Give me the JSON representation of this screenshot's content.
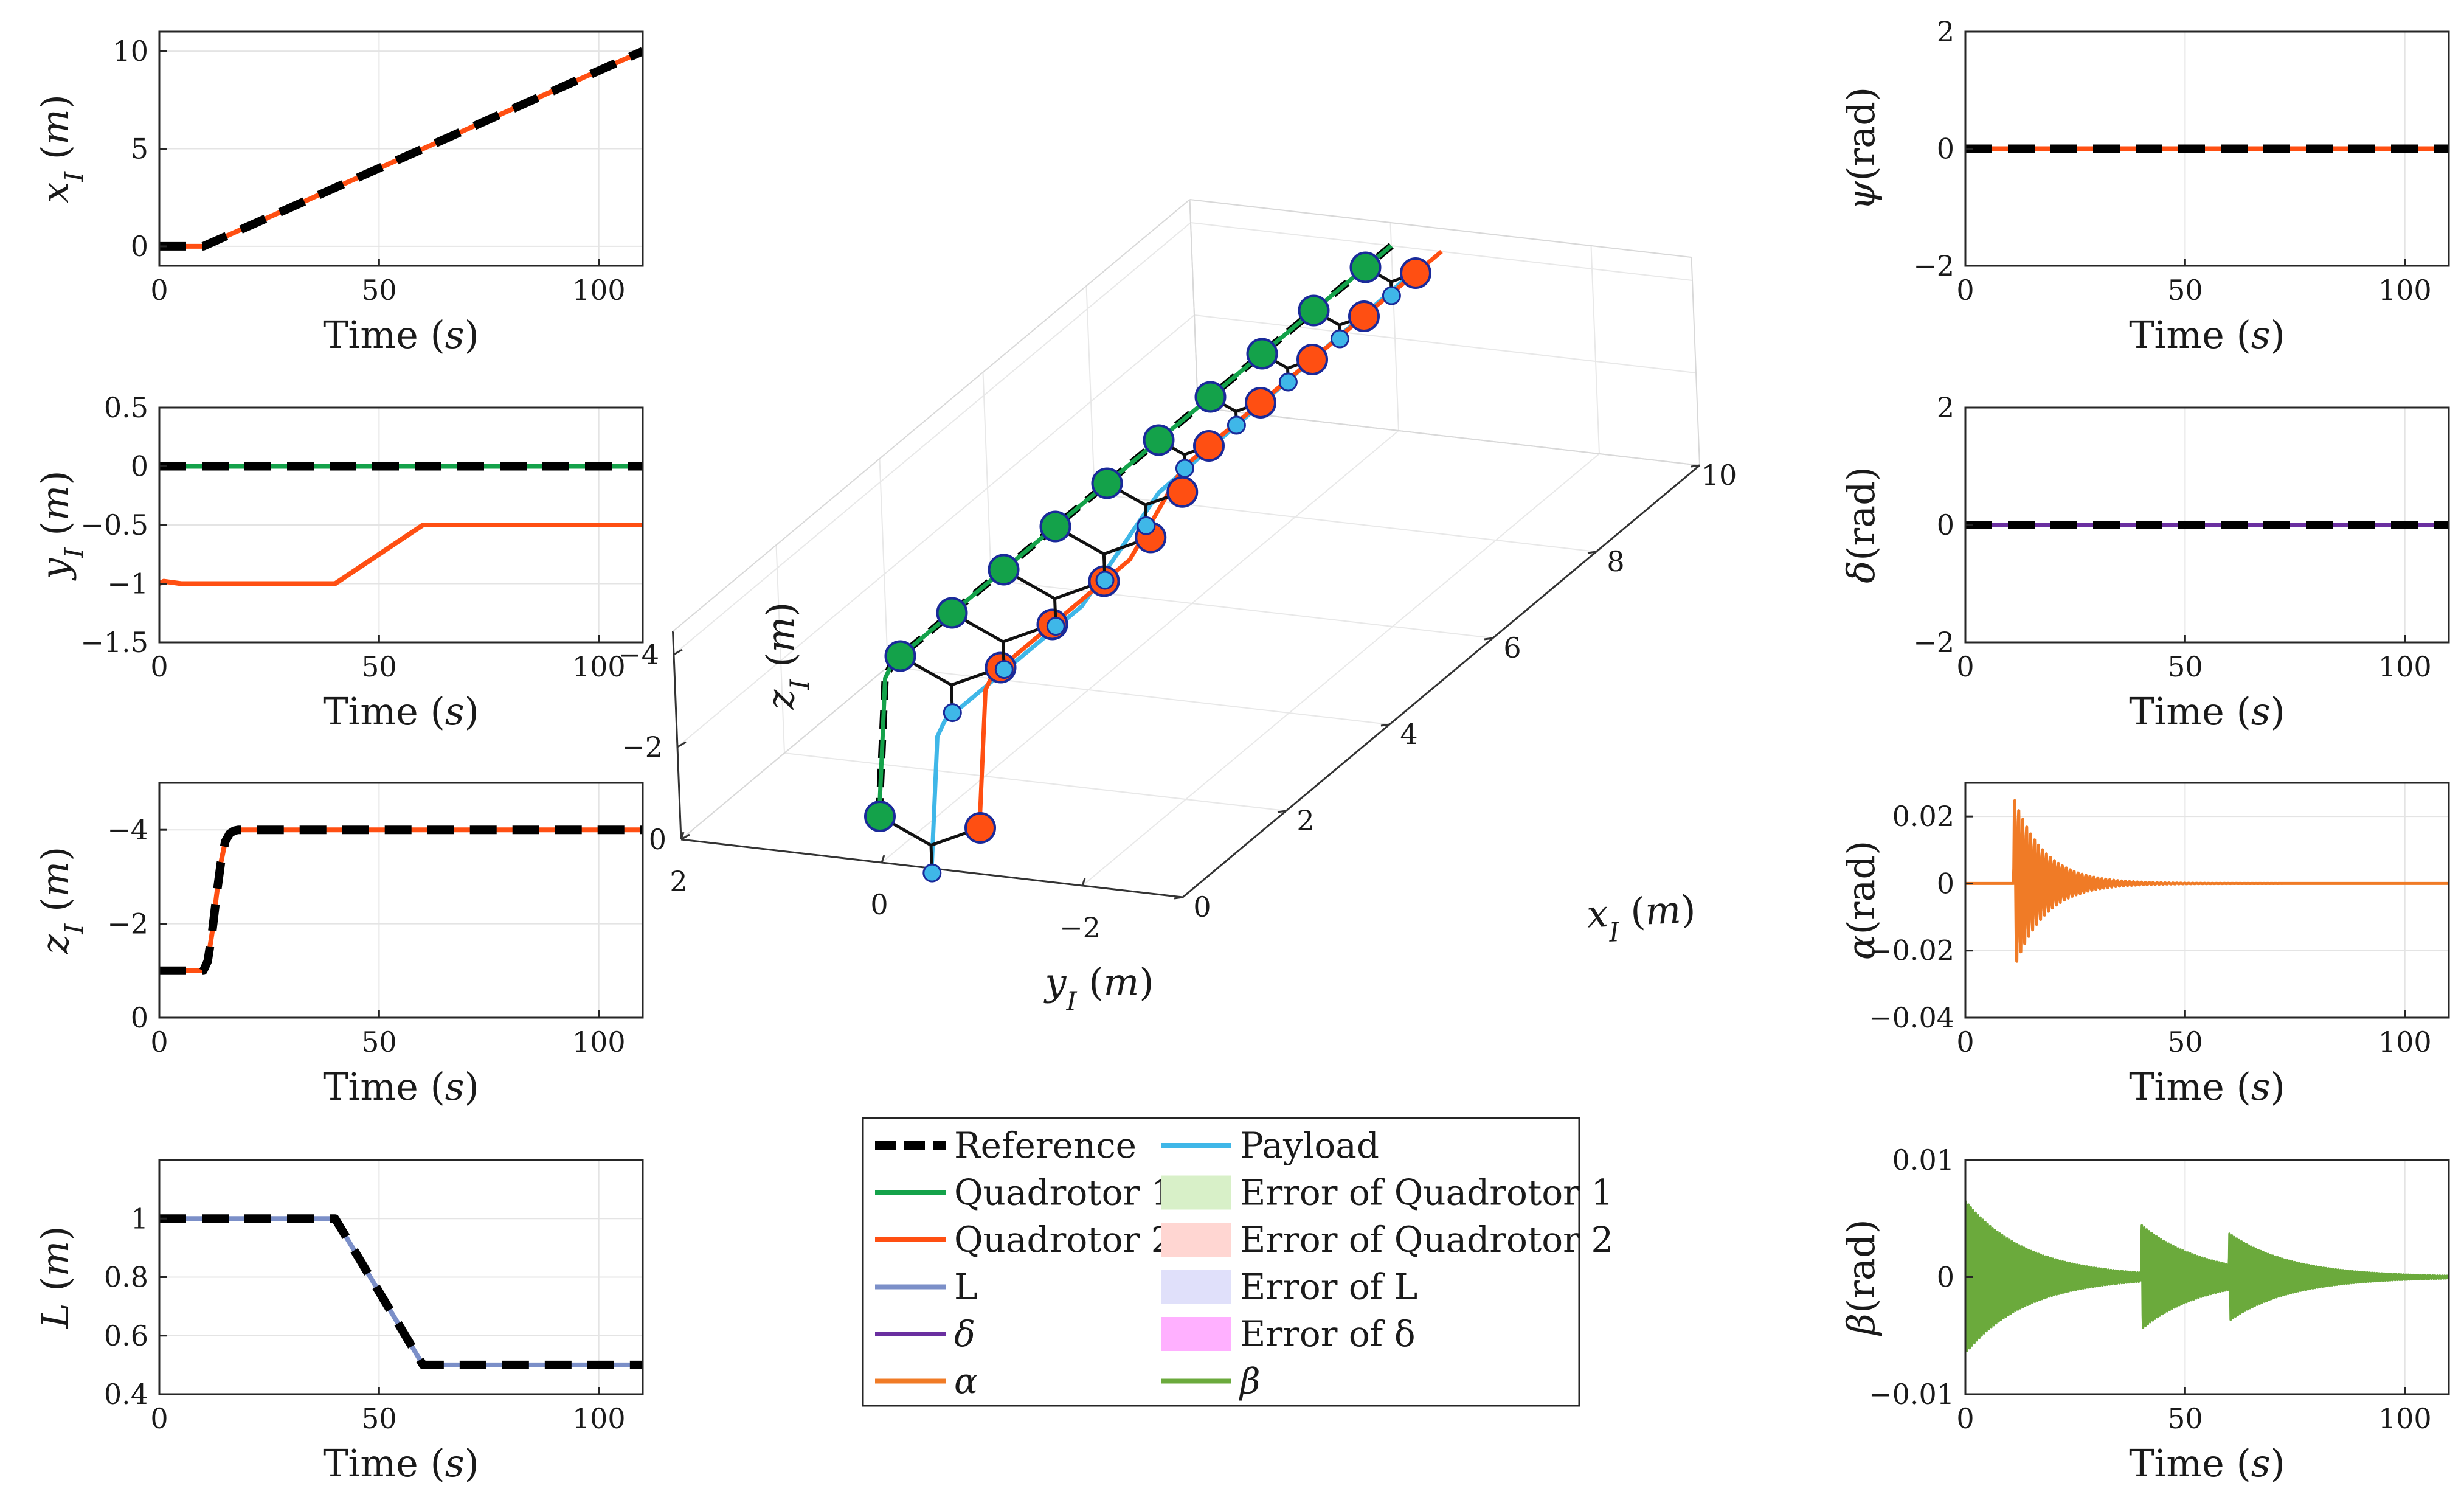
{
  "chart_data": [
    {
      "id": "xI",
      "type": "line",
      "xlabel": "Time (s)",
      "ylabel": "x_I (m)",
      "xlim": [
        0,
        110
      ],
      "ylim": [
        -1,
        11
      ],
      "xticks": [
        0,
        50,
        100
      ],
      "yticks": [
        0,
        5,
        10
      ],
      "series": [
        {
          "name": "Quadrotor 2",
          "color": "#FF4F12",
          "width": 8,
          "x": [
            0,
            10,
            12,
            110
          ],
          "y": [
            0,
            0,
            0.2,
            10
          ]
        },
        {
          "name": "Reference",
          "color": "#000000",
          "width": 14,
          "dash": "44 26",
          "x": [
            0,
            10,
            12,
            110
          ],
          "y": [
            0,
            0,
            0.2,
            10
          ]
        }
      ]
    },
    {
      "id": "yI",
      "type": "line",
      "xlabel": "Time (s)",
      "ylabel": "y_I (m)",
      "xlim": [
        0,
        110
      ],
      "ylim": [
        -1.5,
        0.5
      ],
      "xticks": [
        0,
        50,
        100
      ],
      "yticks": [
        -1.5,
        -1,
        -0.5,
        0,
        0.5
      ],
      "series": [
        {
          "name": "Quadrotor 1",
          "color": "#14A24A",
          "width": 8,
          "x": [
            0,
            110
          ],
          "y": [
            0,
            0
          ]
        },
        {
          "name": "Quadrotor 2",
          "color": "#FF4F12",
          "width": 8,
          "x": [
            0,
            1,
            5,
            40,
            60,
            110
          ],
          "y": [
            -1,
            -0.98,
            -1,
            -1,
            -0.5,
            -0.5
          ]
        },
        {
          "name": "Reference",
          "color": "#000000",
          "width": 14,
          "dash": "44 26",
          "x": [
            0,
            110
          ],
          "y": [
            0,
            0
          ]
        }
      ]
    },
    {
      "id": "zI",
      "type": "line",
      "xlabel": "Time (s)",
      "ylabel": "z_I (m)",
      "xlim": [
        0,
        110
      ],
      "ylim": [
        0,
        -5
      ],
      "reversed_y": true,
      "xticks": [
        0,
        50,
        100
      ],
      "yticks": [
        0,
        -2,
        -4
      ],
      "series": [
        {
          "name": "Quadrotor 2",
          "color": "#FF4F12",
          "width": 8,
          "x": [
            0,
            10,
            11,
            12,
            13,
            14,
            15,
            16,
            17,
            18,
            110
          ],
          "y": [
            -1,
            -1,
            -1.2,
            -1.8,
            -2.6,
            -3.3,
            -3.75,
            -3.92,
            -3.98,
            -4,
            -4
          ]
        },
        {
          "name": "Reference",
          "color": "#000000",
          "width": 14,
          "dash": "44 26",
          "x": [
            0,
            10,
            11,
            12,
            13,
            14,
            15,
            16,
            17,
            18,
            110
          ],
          "y": [
            -1,
            -1,
            -1.2,
            -1.8,
            -2.6,
            -3.3,
            -3.75,
            -3.92,
            -3.98,
            -4,
            -4
          ]
        }
      ]
    },
    {
      "id": "L",
      "type": "line",
      "xlabel": "Time (s)",
      "ylabel": "L (m)",
      "xlim": [
        0,
        110
      ],
      "ylim": [
        0.4,
        1.2
      ],
      "xticks": [
        0,
        50,
        100
      ],
      "yticks": [
        0.4,
        0.6,
        0.8,
        1
      ],
      "series": [
        {
          "name": "L",
          "color": "#7B8FC8",
          "width": 8,
          "x": [
            0,
            40,
            60,
            110
          ],
          "y": [
            1,
            1,
            0.5,
            0.5
          ]
        },
        {
          "name": "Reference",
          "color": "#000000",
          "width": 14,
          "dash": "44 26",
          "x": [
            0,
            40,
            60,
            110
          ],
          "y": [
            1,
            1,
            0.5,
            0.5
          ]
        }
      ]
    },
    {
      "id": "psi",
      "type": "line",
      "xlabel": "Time (s)",
      "ylabel": "ψ(rad)",
      "xlim": [
        0,
        110
      ],
      "ylim": [
        -2,
        2
      ],
      "xticks": [
        0,
        50,
        100
      ],
      "yticks": [
        -2,
        0,
        2
      ],
      "series": [
        {
          "name": "Quadrotor 2",
          "color": "#FF4F12",
          "width": 8,
          "x": [
            0,
            110
          ],
          "y": [
            0,
            0
          ]
        },
        {
          "name": "Reference",
          "color": "#000000",
          "width": 14,
          "dash": "44 26",
          "x": [
            0,
            110
          ],
          "y": [
            0,
            0
          ]
        }
      ]
    },
    {
      "id": "delta",
      "type": "line",
      "xlabel": "Time (s)",
      "ylabel": "δ(rad)",
      "xlim": [
        0,
        110
      ],
      "ylim": [
        -2,
        2
      ],
      "xticks": [
        0,
        50,
        100
      ],
      "yticks": [
        -2,
        0,
        2
      ],
      "series": [
        {
          "name": "δ",
          "color": "#6A2FA0",
          "width": 8,
          "x": [
            0,
            110
          ],
          "y": [
            0,
            0
          ]
        },
        {
          "name": "Reference",
          "color": "#000000",
          "width": 14,
          "dash": "44 26",
          "x": [
            0,
            110
          ],
          "y": [
            0,
            0
          ]
        }
      ]
    },
    {
      "id": "alpha",
      "type": "line",
      "xlabel": "Time (s)",
      "ylabel": "α(rad)",
      "xlim": [
        0,
        110
      ],
      "ylim": [
        -0.04,
        0.03
      ],
      "xticks": [
        0,
        50,
        100
      ],
      "yticks": [
        -0.04,
        -0.02,
        0,
        0.02
      ],
      "series": [
        {
          "name": "α",
          "color": "#F07B26",
          "width": 5,
          "oscillation": {
            "base": 0,
            "t0": 11,
            "t1": 110,
            "amplitude": 0.026,
            "period": 0.9,
            "decay": 7
          }
        }
      ]
    },
    {
      "id": "beta",
      "type": "line",
      "xlabel": "Time (s)",
      "ylabel": "β(rad)",
      "xlim": [
        0,
        110
      ],
      "ylim": [
        -0.01,
        0.01
      ],
      "xticks": [
        0,
        50,
        100
      ],
      "yticks": [
        -0.01,
        0,
        0.01
      ],
      "series": [
        {
          "name": "β",
          "color": "#6BAA3C",
          "width": 4,
          "oscillation": {
            "base": 0,
            "t0": 0,
            "t1": 110,
            "amplitude": 0.0065,
            "period": 0.55,
            "decay": 14,
            "bursts": [
              {
                "t": 40,
                "amplitude": 0.0045
              },
              {
                "t": 60,
                "amplitude": 0.0045
              }
            ]
          }
        }
      ]
    },
    {
      "id": "traj3d",
      "type": "line3d",
      "xlabel": "x_I (m)",
      "ylabel": "y_I (m)",
      "zlabel": "z_I (m)",
      "xlim": [
        0,
        10
      ],
      "ylim": [
        2,
        -3
      ],
      "zlim": [
        0,
        -4.5
      ],
      "xticks": [
        0,
        2,
        4,
        6,
        8,
        10
      ],
      "yticks": [
        2,
        0,
        -2
      ],
      "zticks": [
        0,
        -2,
        -4
      ],
      "series": [
        {
          "name": "Reference",
          "color": "#000000",
          "width": 12,
          "dash": "30 18",
          "points": [
            [
              0,
              0,
              -1
            ],
            [
              0,
              0,
              -1.2
            ],
            [
              0.1,
              0,
              -2.5
            ],
            [
              0.2,
              0,
              -3.8
            ],
            [
              0.35,
              0,
              -4
            ],
            [
              10,
              0,
              -4
            ]
          ]
        },
        {
          "name": "Quadrotor 1",
          "color": "#14A24A",
          "width": 7,
          "points": [
            [
              0,
              0,
              -1
            ],
            [
              0,
              0,
              -1.2
            ],
            [
              0.1,
              0,
              -2.5
            ],
            [
              0.2,
              0,
              -3.8
            ],
            [
              0.35,
              0,
              -4
            ],
            [
              10,
              0,
              -4
            ]
          ]
        },
        {
          "name": "Quadrotor 2",
          "color": "#FF4F12",
          "width": 7,
          "points": [
            [
              0,
              -1,
              -1
            ],
            [
              0,
              -1,
              -1.2
            ],
            [
              0.1,
              -1,
              -2.5
            ],
            [
              0.2,
              -1,
              -3.8
            ],
            [
              0.35,
              -1,
              -4
            ],
            [
              3,
              -1,
              -4
            ],
            [
              5,
              -0.5,
              -4
            ],
            [
              10,
              -0.5,
              -4
            ]
          ]
        },
        {
          "name": "Payload",
          "color": "#3FB7E8",
          "width": 7,
          "points": [
            [
              0,
              -0.5,
              0.134
            ],
            [
              0,
              -0.5,
              -0.066
            ],
            [
              0.1,
              -0.5,
              -1.366
            ],
            [
              0.2,
              -0.5,
              -2.666
            ],
            [
              0.35,
              -0.5,
              -2.866
            ],
            [
              3,
              -0.5,
              -2.866
            ],
            [
              5,
              -0.25,
              -3.4
            ],
            [
              10,
              -0.25,
              -3.567
            ]
          ]
        }
      ],
      "snapshots": [
        {
          "x": 0,
          "q1y": 0,
          "q2y": -1,
          "py": -0.5,
          "z": -1,
          "L": 1
        },
        {
          "x": 0.5,
          "q1y": 0,
          "q2y": -1,
          "py": -0.5,
          "z": -4,
          "L": 1
        },
        {
          "x": 1.5,
          "q1y": 0,
          "q2y": -1,
          "py": -0.5,
          "z": -4,
          "L": 1
        },
        {
          "x": 2.5,
          "q1y": 0,
          "q2y": -1,
          "py": -0.5,
          "z": -4,
          "L": 1
        },
        {
          "x": 3.5,
          "q1y": 0,
          "q2y": -0.95,
          "py": -0.475,
          "z": -4,
          "L": 0.95
        },
        {
          "x": 4.5,
          "q1y": 0,
          "q2y": -0.75,
          "py": -0.375,
          "z": -4,
          "L": 0.75
        },
        {
          "x": 5.5,
          "q1y": 0,
          "q2y": -0.5,
          "py": -0.25,
          "z": -4,
          "L": 0.5
        },
        {
          "x": 6.5,
          "q1y": 0,
          "q2y": -0.5,
          "py": -0.25,
          "z": -4,
          "L": 0.5
        },
        {
          "x": 7.5,
          "q1y": 0,
          "q2y": -0.5,
          "py": -0.25,
          "z": -4,
          "L": 0.5
        },
        {
          "x": 8.5,
          "q1y": 0,
          "q2y": -0.5,
          "py": -0.25,
          "z": -4,
          "L": 0.5
        },
        {
          "x": 9.5,
          "q1y": 0,
          "q2y": -0.5,
          "py": -0.25,
          "z": -4,
          "L": 0.5
        }
      ]
    }
  ],
  "legend": {
    "items": [
      {
        "label": "Reference",
        "style": "dash",
        "color": "#000000"
      },
      {
        "label": "Quadrotor 1",
        "style": "line",
        "color": "#14A24A"
      },
      {
        "label": "Quadrotor 2",
        "style": "line",
        "color": "#FF4F12"
      },
      {
        "label": "L",
        "style": "line",
        "color": "#7B8FC8"
      },
      {
        "label": "δ",
        "style": "line",
        "color": "#6A2FA0"
      },
      {
        "label": "α",
        "style": "line",
        "color": "#F07B26"
      },
      {
        "label": "Payload",
        "style": "line",
        "color": "#3FB7E8"
      },
      {
        "label": "Error of Quadrotor 1",
        "style": "patch",
        "color": "#D8F0C8"
      },
      {
        "label": "Error of Quadrotor 2",
        "style": "patch",
        "color": "#FFD6D2"
      },
      {
        "label": "Error of L",
        "style": "patch",
        "color": "#E0E0FA"
      },
      {
        "label": "Error of δ",
        "style": "patch",
        "color": "#FFB0FF"
      },
      {
        "label": "β",
        "style": "line",
        "color": "#6BAA3C"
      }
    ]
  }
}
